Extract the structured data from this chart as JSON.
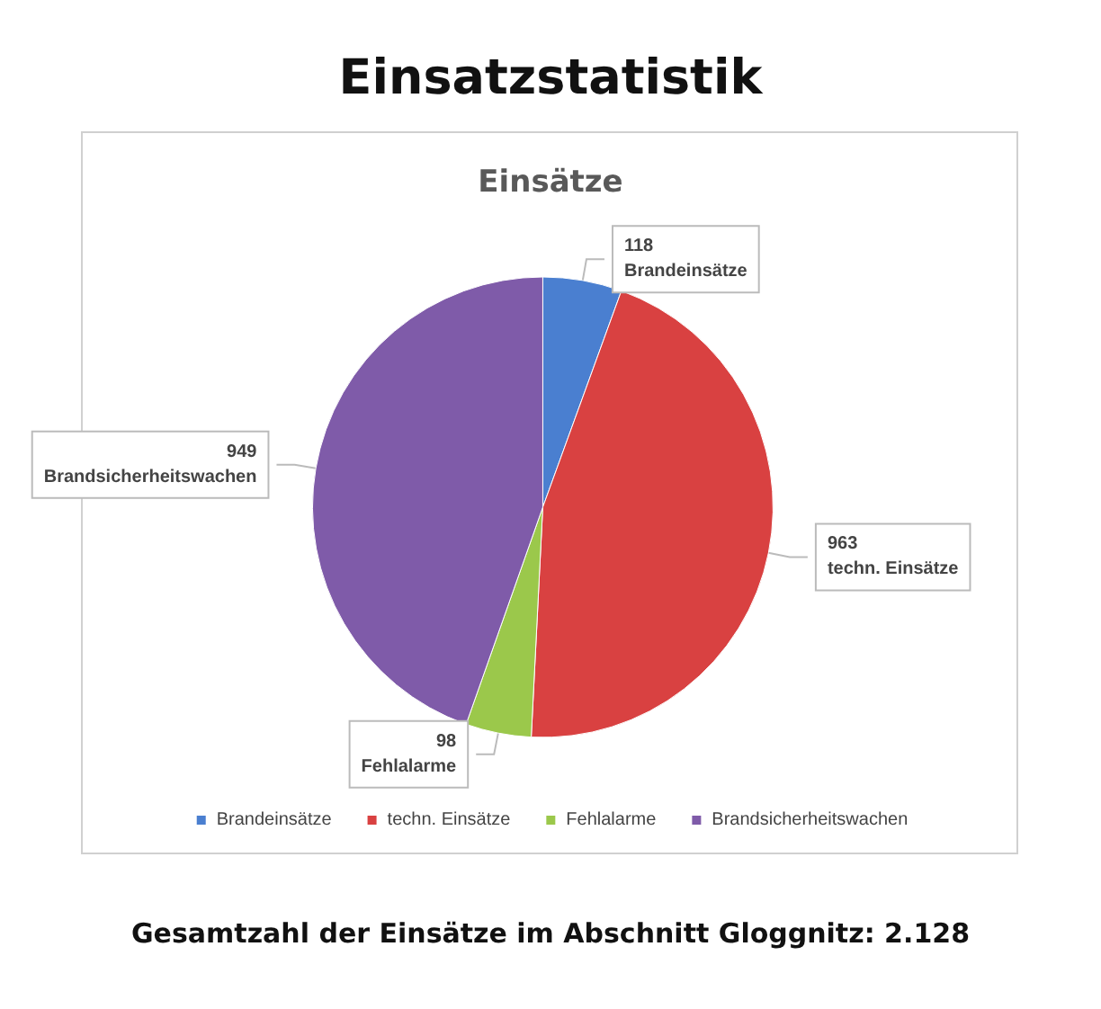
{
  "chart_data": {
    "type": "pie",
    "title": "Einsatzstatistik",
    "subtitle": "Einsätze",
    "categories": [
      "Brandeinsätze",
      "techn. Einsätze",
      "Fehlalarme",
      "Brandsicherheitswachen"
    ],
    "values": [
      118,
      963,
      98,
      949
    ],
    "colors": [
      "#4a7fd0",
      "#d94141",
      "#9bc84b",
      "#7f5ba9"
    ],
    "data_labels": true,
    "legend": "bottom",
    "annotations": [
      "Gesamtzahl der Einsätze im Abschnitt Gloggnitz: 2.128"
    ]
  }
}
